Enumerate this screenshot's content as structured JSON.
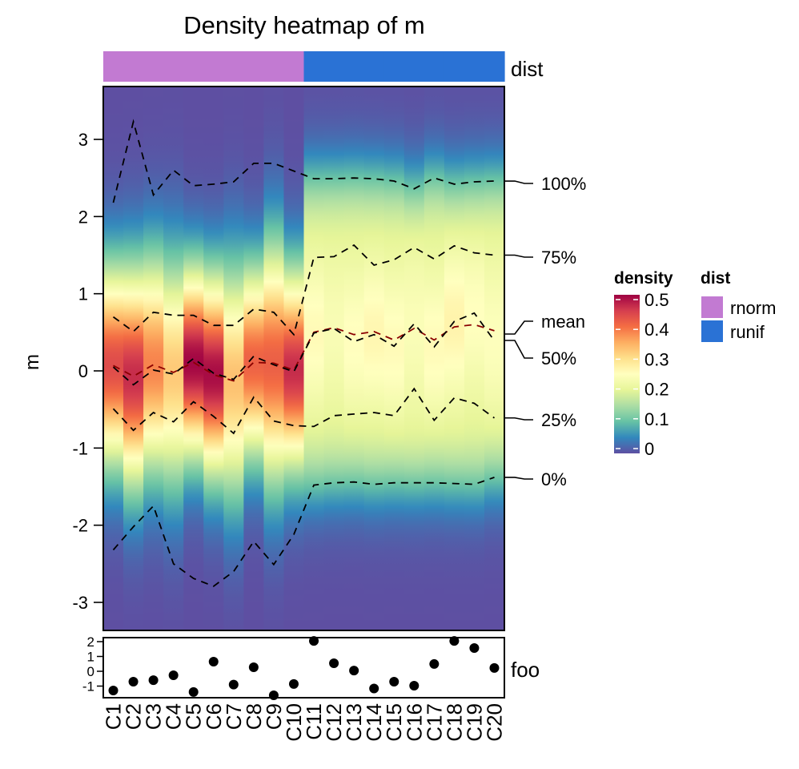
{
  "chart_data": {
    "type": "heatmap",
    "title": "Density heatmap of m",
    "ylabel": "m",
    "ylim": [
      -3.5,
      3.6
    ],
    "yticks": [
      "3",
      "2",
      "1",
      "0",
      "-1",
      "-2",
      "-3"
    ],
    "ytick_values": [
      3,
      2,
      1,
      0,
      -1,
      -2,
      -3
    ],
    "columns": [
      "C1",
      "C2",
      "C3",
      "C4",
      "C5",
      "C6",
      "C7",
      "C8",
      "C9",
      "C10",
      "C11",
      "C12",
      "C13",
      "C14",
      "C15",
      "C16",
      "C17",
      "C18",
      "C19",
      "C20"
    ],
    "dist_annotation": {
      "name": "dist",
      "values": [
        "rnorm",
        "rnorm",
        "rnorm",
        "rnorm",
        "rnorm",
        "rnorm",
        "rnorm",
        "rnorm",
        "rnorm",
        "rnorm",
        "runif",
        "runif",
        "runif",
        "runif",
        "runif",
        "runif",
        "runif",
        "runif",
        "runif",
        "runif"
      ],
      "legend": [
        {
          "label": "rnorm",
          "color": "#C27AD2"
        },
        {
          "label": "runif",
          "color": "#2A72D5"
        }
      ]
    },
    "quantile_lines": [
      {
        "label": "100%",
        "values": [
          2.18,
          3.23,
          2.28,
          2.6,
          2.4,
          2.42,
          2.45,
          2.69,
          2.69,
          2.59,
          2.49,
          2.49,
          2.5,
          2.49,
          2.46,
          2.36,
          2.5,
          2.42,
          2.45,
          2.46
        ],
        "color": "#000000"
      },
      {
        "label": "75%",
        "values": [
          0.7,
          0.51,
          0.76,
          0.72,
          0.72,
          0.59,
          0.59,
          0.8,
          0.76,
          0.47,
          1.47,
          1.48,
          1.63,
          1.37,
          1.44,
          1.6,
          1.45,
          1.62,
          1.53,
          1.5
        ],
        "color": "#000000"
      },
      {
        "label": "mean",
        "values": [
          0.07,
          -0.07,
          0.08,
          -0.02,
          0.11,
          -0.05,
          -0.13,
          0.11,
          0.1,
          0.01,
          0.5,
          0.56,
          0.47,
          0.51,
          0.4,
          0.55,
          0.4,
          0.57,
          0.6,
          0.52
        ],
        "color": "#8B0000"
      },
      {
        "label": "50%",
        "values": [
          0.05,
          -0.18,
          0.01,
          -0.04,
          0.16,
          -0.03,
          -0.11,
          0.19,
          0.08,
          -0.01,
          0.49,
          0.55,
          0.38,
          0.47,
          0.32,
          0.61,
          0.31,
          0.64,
          0.75,
          0.39
        ],
        "color": "#000000"
      },
      {
        "label": "25%",
        "values": [
          -0.49,
          -0.77,
          -0.54,
          -0.66,
          -0.4,
          -0.59,
          -0.81,
          -0.34,
          -0.65,
          -0.71,
          -0.72,
          -0.58,
          -0.56,
          -0.54,
          -0.58,
          -0.23,
          -0.64,
          -0.35,
          -0.42,
          -0.61
        ],
        "color": "#000000"
      },
      {
        "label": "0%",
        "values": [
          -2.32,
          -2.02,
          -1.75,
          -2.5,
          -2.69,
          -2.79,
          -2.6,
          -2.21,
          -2.51,
          -2.12,
          -1.48,
          -1.45,
          -1.44,
          -1.47,
          -1.45,
          -1.45,
          -1.45,
          -1.46,
          -1.47,
          -1.38
        ],
        "color": "#000000"
      }
    ],
    "density_legend": {
      "title": "density",
      "ticks": [
        "0.5",
        "0.4",
        "0.3",
        "0.2",
        "0.1",
        "0"
      ],
      "tick_values": [
        0.5,
        0.4,
        0.3,
        0.2,
        0.1,
        0
      ],
      "range": [
        0,
        0.52
      ],
      "palette": [
        "#5E4FA2",
        "#3288BD",
        "#66C2A5",
        "#ABDDA4",
        "#E6F598",
        "#FFFFBF",
        "#FEE08B",
        "#FDAE61",
        "#F46D43",
        "#D53E4F",
        "#9E0142"
      ]
    },
    "foo_annotation": {
      "name": "foo",
      "yticks": [
        "2",
        "1",
        "0",
        "-1"
      ],
      "ytick_values": [
        2,
        1,
        0,
        -1
      ],
      "ylim": [
        -1.75,
        2.25
      ],
      "values": [
        -1.3,
        -0.7,
        -0.6,
        -0.27,
        -1.4,
        0.65,
        -0.9,
        0.27,
        -1.62,
        -0.86,
        2.05,
        0.54,
        0.05,
        -1.16,
        -0.7,
        -0.97,
        0.49,
        2.05,
        1.57,
        0.22
      ]
    }
  }
}
